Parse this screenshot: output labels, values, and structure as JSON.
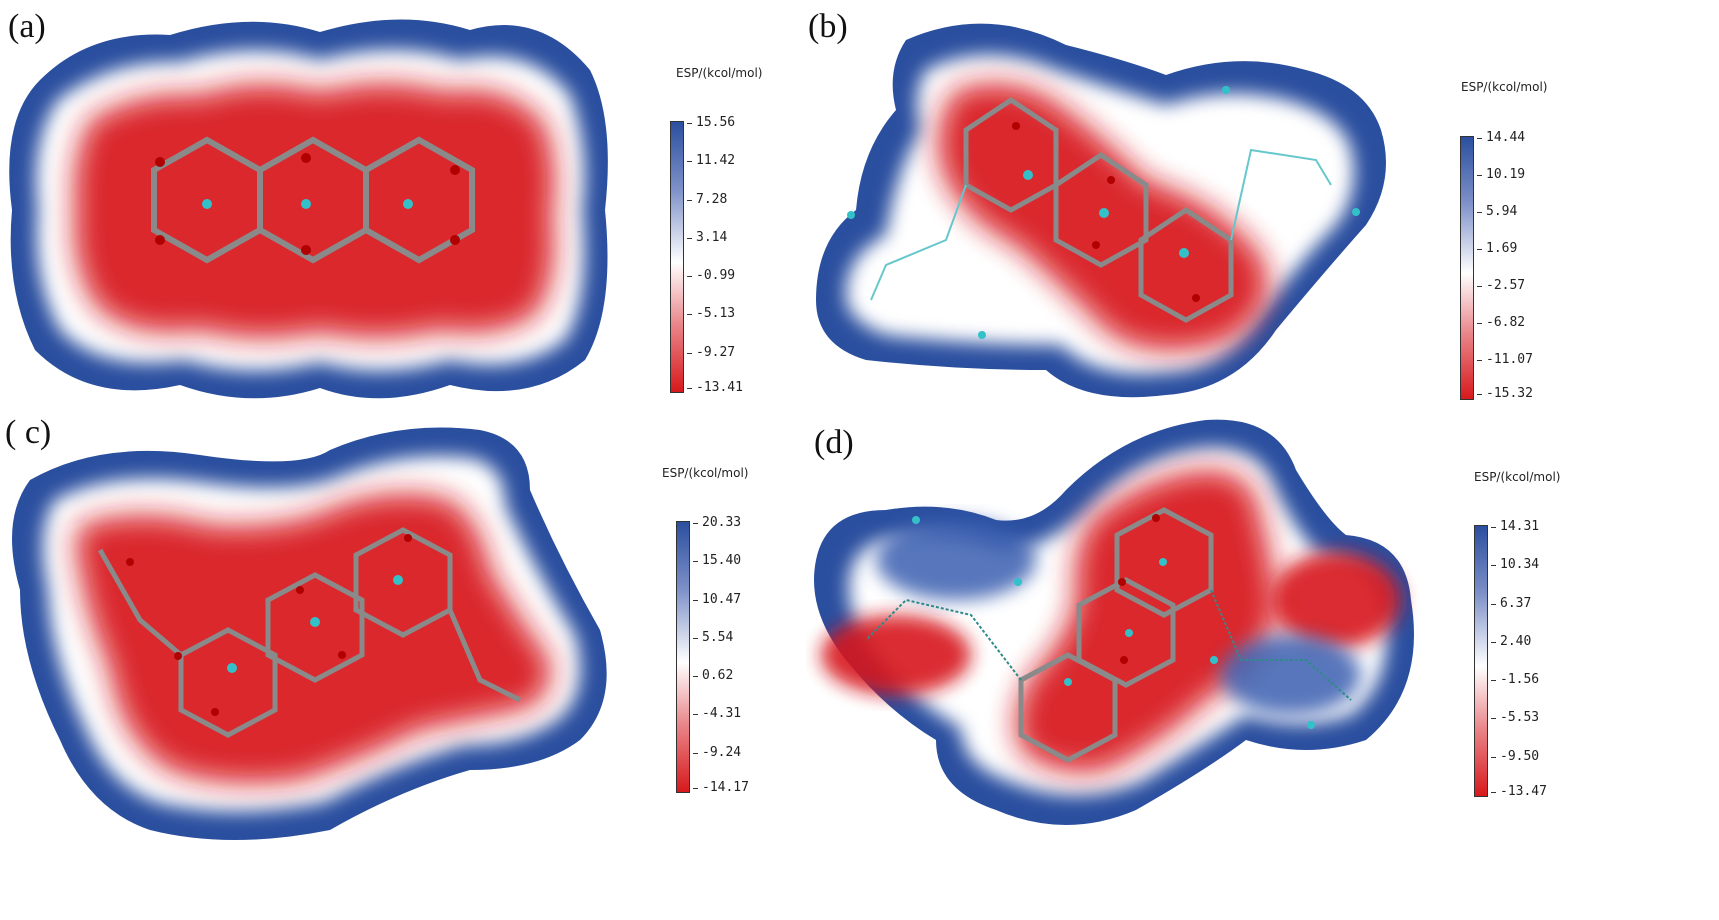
{
  "colors": {
    "positive": "#2b4f9f",
    "neutral": "#ffffff",
    "negative": "#d7191c",
    "bond": "#8a8a8a",
    "atom": "#33c1c9"
  },
  "panels": [
    {
      "label": "(a)",
      "colorbar_title": "ESP/(kcol/mol)",
      "ticks": [
        "15.56",
        "11.42",
        "7.28",
        "3.14",
        "-0.99",
        "-5.13",
        "-9.27",
        "-13.41"
      ]
    },
    {
      "label": "(b)",
      "colorbar_title": "ESP/(kcol/mol)",
      "ticks": [
        "14.44",
        "10.19",
        "5.94",
        "1.69",
        "-2.57",
        "-6.82",
        "-11.07",
        "-15.32"
      ]
    },
    {
      "label": "( c)",
      "colorbar_title": "ESP/(kcol/mol)",
      "ticks": [
        "20.33",
        "15.40",
        "10.47",
        "5.54",
        "0.62",
        "-4.31",
        "-9.24",
        "-14.17"
      ]
    },
    {
      "label": "(d)",
      "colorbar_title": "ESP/(kcol/mol)",
      "ticks": [
        "14.31",
        "10.34",
        "6.37",
        "2.40",
        "-1.56",
        "-5.53",
        "-9.50",
        "-13.47"
      ]
    }
  ]
}
